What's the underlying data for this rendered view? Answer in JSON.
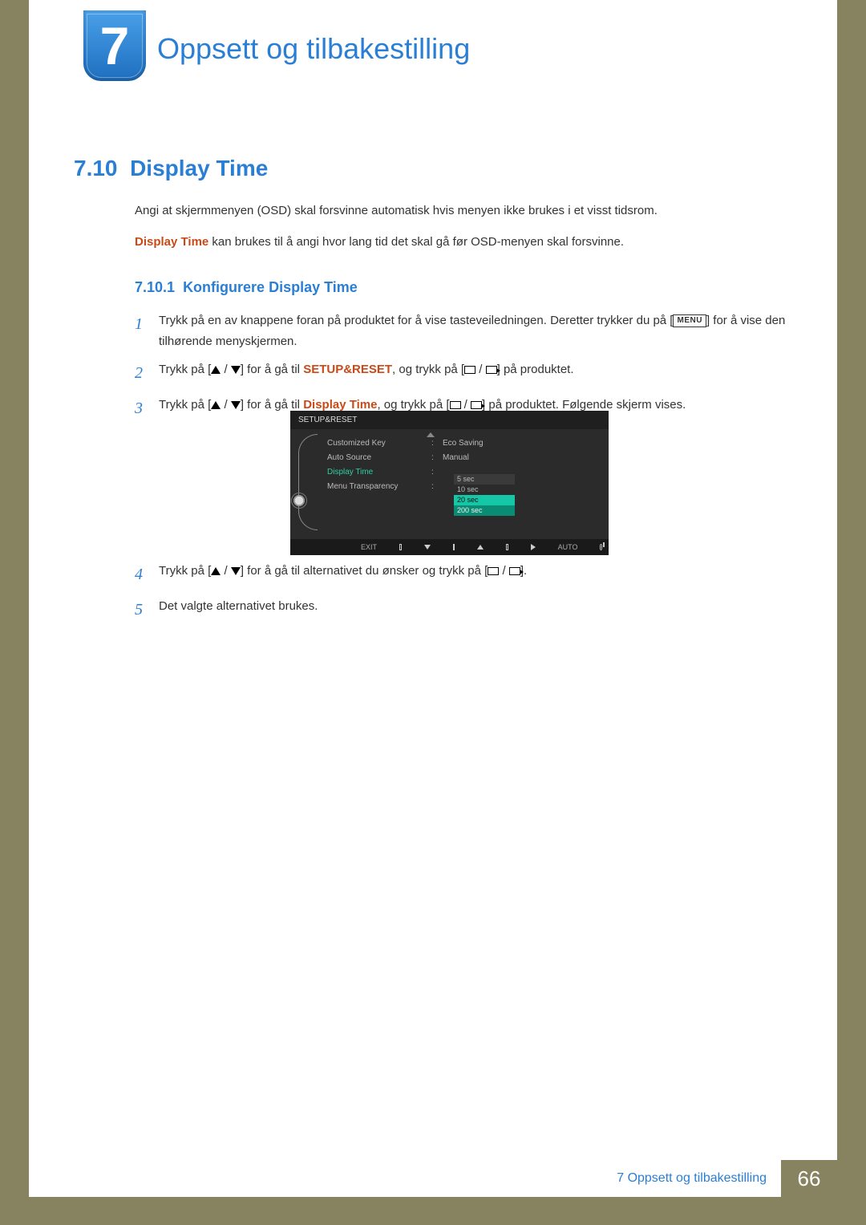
{
  "chapter": {
    "number": "7",
    "title": "Oppsett og tilbakestilling"
  },
  "section": {
    "number": "7.10",
    "title": "Display Time"
  },
  "intro_p1": "Angi at skjermmenyen (OSD) skal forsvinne automatisk hvis menyen ikke brukes i et visst tidsrom.",
  "intro_p2_prefix": "Display Time",
  "intro_p2_rest": " kan brukes til å angi hvor lang tid det skal gå før OSD-menyen skal forsvinne.",
  "subsection": {
    "number": "7.10.1",
    "title": "Konfigurere Display Time"
  },
  "steps": {
    "s1_a": "Trykk på en av knappene foran på produktet for å vise tasteveiledningen. Deretter trykker du på [",
    "s1_menu": "MENU",
    "s1_b": "] for å vise den tilhørende menyskjermen.",
    "s2_a": "Trykk på [",
    "s2_b": "] for å gå til ",
    "s2_hl": "SETUP&RESET",
    "s2_c": ", og trykk på [",
    "s2_d": "] på produktet.",
    "s3_a": "Trykk på [",
    "s3_b": "] for å gå til ",
    "s3_hl": "Display Time",
    "s3_c": ", og trykk på [",
    "s3_d": "] på produktet. Følgende skjerm vises.",
    "s4_a": "Trykk på [",
    "s4_b": "] for å gå til alternativet du ønsker og trykk på [",
    "s4_c": "].",
    "s5": "Det valgte alternativet brukes."
  },
  "osd": {
    "title": "SETUP&RESET",
    "rows": [
      {
        "label": "Customized Key",
        "value": "Eco Saving"
      },
      {
        "label": "Auto Source",
        "value": "Manual"
      },
      {
        "label": "Display Time",
        "value": ""
      },
      {
        "label": "Menu Transparency",
        "value": ""
      }
    ],
    "options": [
      "5 sec",
      "10 sec",
      "20 sec",
      "200 sec"
    ],
    "footer": {
      "exit": "EXIT",
      "auto": "AUTO"
    }
  },
  "footer": {
    "label": "7 Oppsett og tilbakestilling",
    "page": "66"
  },
  "nums": {
    "n1": "1",
    "n2": "2",
    "n3": "3",
    "n4": "4",
    "n5": "5"
  }
}
